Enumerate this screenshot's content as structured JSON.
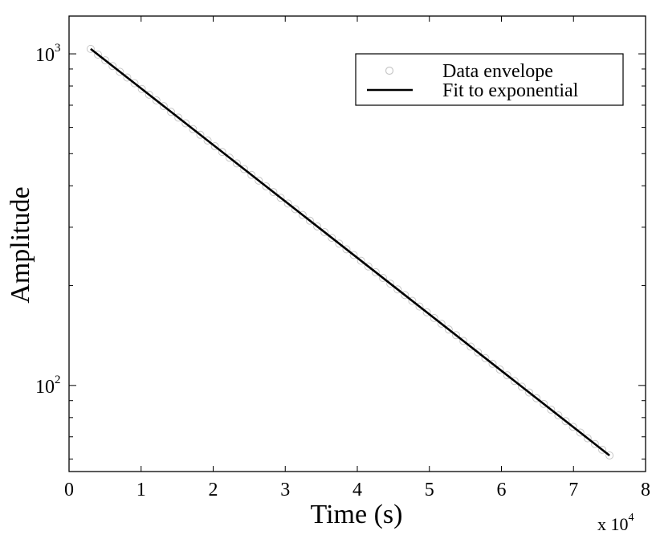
{
  "chart_data": {
    "type": "scatter",
    "xlabel": "Time (s)",
    "ylabel": "Amplitude",
    "x_multiplier": {
      "prefix": "x 10",
      "exponent": "4",
      "value": 10000
    },
    "xlim": [
      0,
      80000
    ],
    "ylim": [
      55,
      1300
    ],
    "yscale": "log",
    "x_ticks": [
      0,
      10000,
      20000,
      30000,
      40000,
      50000,
      60000,
      70000,
      80000
    ],
    "x_tick_labels": [
      "0",
      "1",
      "2",
      "3",
      "4",
      "5",
      "6",
      "7",
      "8"
    ],
    "y_major_ticks": [
      {
        "value": 100,
        "base": "10",
        "exponent": "2"
      },
      {
        "value": 1000,
        "base": "10",
        "exponent": "3"
      }
    ],
    "grid": false,
    "legend": {
      "position": "top-right"
    },
    "series": [
      {
        "name": "Data envelope",
        "kind": "markers",
        "marker": "open-circle",
        "color": "#c8c8c8",
        "x_range": [
          3000,
          75000
        ],
        "y_range": [
          1035,
          61.5
        ],
        "point_count": 72
      },
      {
        "name": "Fit to exponential",
        "kind": "line",
        "color": "#000000",
        "x": [
          3000,
          75000
        ],
        "y": [
          1035,
          61.5
        ]
      }
    ]
  }
}
